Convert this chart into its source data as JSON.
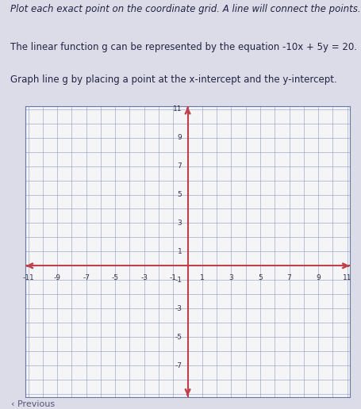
{
  "title_lines": [
    "Plot each exact point on the coordinate grid. A line will connect the points.",
    "The linear function g can be represented by the equation -10x + 5y = 20.",
    "Graph line g by placing a point at the x-intercept and the y-intercept."
  ],
  "xmin": -11,
  "xmax": 11,
  "ymin": -9,
  "ymax": 11,
  "x_tick_labels": [
    -11,
    -9,
    -7,
    -5,
    -3,
    -1,
    1,
    3,
    5,
    7,
    9,
    11
  ],
  "y_tick_labels": [
    -7,
    -5,
    -3,
    -1,
    1,
    3,
    5,
    7,
    9,
    11
  ],
  "axis_color": "#c0404a",
  "grid_color": "#8899bb",
  "background_color": "#dcdce8",
  "graph_bg": "#f5f5f8",
  "text_color": "#222244",
  "font_size_title": 8.5,
  "font_size_ticks": 6.5
}
